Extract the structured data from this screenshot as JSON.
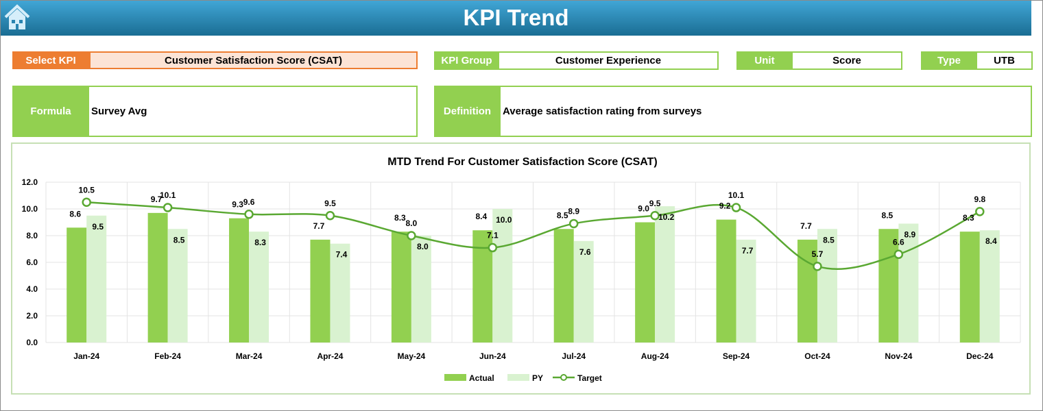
{
  "header": {
    "title": "KPI Trend",
    "home_icon": "home-icon"
  },
  "fields": {
    "select_kpi": {
      "label": "Select KPI",
      "value": "Customer Satisfaction Score (CSAT)"
    },
    "kpi_group": {
      "label": "KPI Group",
      "value": "Customer Experience"
    },
    "unit": {
      "label": "Unit",
      "value": "Score"
    },
    "type": {
      "label": "Type",
      "value": "UTB"
    },
    "formula": {
      "label": "Formula",
      "value": "Survey Avg"
    },
    "definition": {
      "label": "Definition",
      "value": "Average satisfaction rating from surveys"
    }
  },
  "colors": {
    "accent_orange": "#ed7d31",
    "accent_green": "#92d050",
    "py": "#d9f2d0",
    "target": "#5aa832",
    "header": "#1f7ba8"
  },
  "chart_data": {
    "type": "bar",
    "title": "MTD Trend For Customer Satisfaction Score (CSAT)",
    "categories": [
      "Jan-24",
      "Feb-24",
      "Mar-24",
      "Apr-24",
      "May-24",
      "Jun-24",
      "Jul-24",
      "Aug-24",
      "Sep-24",
      "Oct-24",
      "Nov-24",
      "Dec-24"
    ],
    "ylim": [
      0,
      12
    ],
    "yticks": [
      "0.0",
      "2.0",
      "4.0",
      "6.0",
      "8.0",
      "10.0",
      "12.0"
    ],
    "grid": true,
    "legend_position": "bottom",
    "series": [
      {
        "name": "Actual",
        "type": "bar",
        "color": "#92d050",
        "values": [
          8.6,
          9.7,
          9.3,
          7.7,
          8.3,
          8.4,
          8.5,
          9.0,
          9.2,
          7.7,
          8.5,
          8.3
        ]
      },
      {
        "name": "PY",
        "type": "bar",
        "color": "#d9f2d0",
        "values": [
          9.5,
          8.5,
          8.3,
          7.4,
          8.0,
          10.0,
          7.6,
          10.2,
          7.7,
          8.5,
          8.9,
          8.4
        ]
      },
      {
        "name": "Target",
        "type": "line",
        "color": "#5aa832",
        "values": [
          10.5,
          10.1,
          9.6,
          9.5,
          8.0,
          7.1,
          8.9,
          9.5,
          10.1,
          5.7,
          6.6,
          9.8
        ]
      }
    ]
  }
}
